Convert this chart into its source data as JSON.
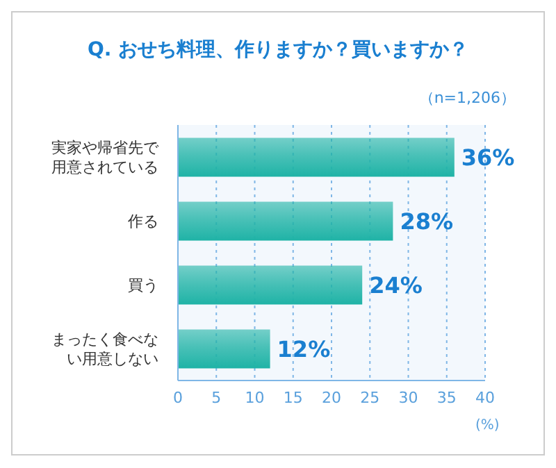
{
  "chart_data": {
    "type": "bar",
    "orientation": "horizontal",
    "title": "Q. おせち料理、作りますか？買いますか？",
    "subtitle": "（n=1,206）",
    "xlabel": "(%)",
    "categories": [
      "実家や帰省先で用意されている",
      "作る",
      "買う",
      "まったく食べない用意しない"
    ],
    "values": [
      36,
      28,
      24,
      12
    ],
    "value_labels": [
      "36%",
      "28%",
      "24%",
      "12%"
    ],
    "color": "#1fb3a6",
    "xlim": [
      0,
      40
    ],
    "xticks": [
      0,
      5,
      10,
      15,
      20,
      25,
      30,
      35,
      40
    ],
    "grid": "x"
  }
}
